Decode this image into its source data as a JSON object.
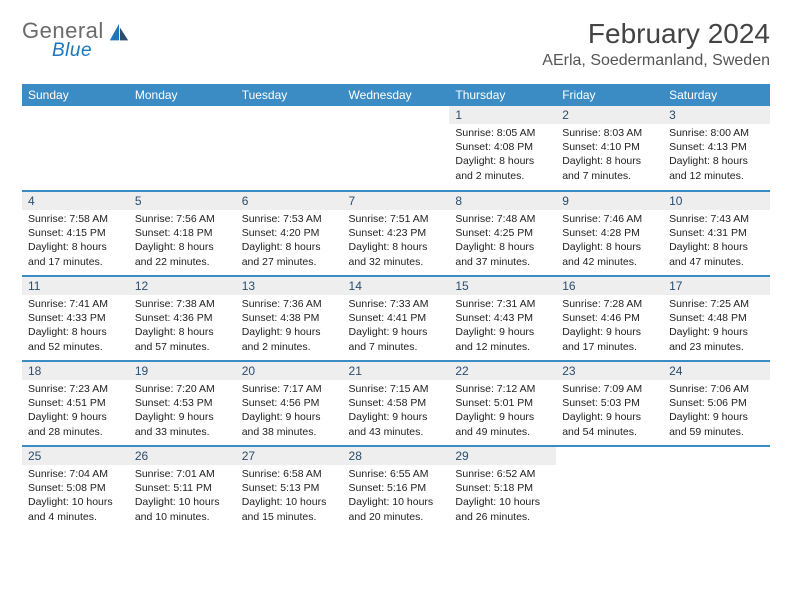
{
  "brand": {
    "name": "General",
    "sub": "Blue"
  },
  "title": "February 2024",
  "location": "AErla, Soedermanland, Sweden",
  "colors": {
    "header_blue": "#3b8bc4",
    "navy": "#2a4d6e",
    "lt_grey": "#eeeeee",
    "white": "#ffffff"
  },
  "dayHeaders": [
    "Sunday",
    "Monday",
    "Tuesday",
    "Wednesday",
    "Thursday",
    "Friday",
    "Saturday"
  ],
  "weeks": [
    [
      {
        "n": "",
        "lines": []
      },
      {
        "n": "",
        "lines": []
      },
      {
        "n": "",
        "lines": []
      },
      {
        "n": "",
        "lines": []
      },
      {
        "n": "1",
        "lines": [
          "Sunrise: 8:05 AM",
          "Sunset: 4:08 PM",
          "Daylight: 8 hours",
          "and 2 minutes."
        ]
      },
      {
        "n": "2",
        "lines": [
          "Sunrise: 8:03 AM",
          "Sunset: 4:10 PM",
          "Daylight: 8 hours",
          "and 7 minutes."
        ]
      },
      {
        "n": "3",
        "lines": [
          "Sunrise: 8:00 AM",
          "Sunset: 4:13 PM",
          "Daylight: 8 hours",
          "and 12 minutes."
        ]
      }
    ],
    [
      {
        "n": "4",
        "lines": [
          "Sunrise: 7:58 AM",
          "Sunset: 4:15 PM",
          "Daylight: 8 hours",
          "and 17 minutes."
        ]
      },
      {
        "n": "5",
        "lines": [
          "Sunrise: 7:56 AM",
          "Sunset: 4:18 PM",
          "Daylight: 8 hours",
          "and 22 minutes."
        ]
      },
      {
        "n": "6",
        "lines": [
          "Sunrise: 7:53 AM",
          "Sunset: 4:20 PM",
          "Daylight: 8 hours",
          "and 27 minutes."
        ]
      },
      {
        "n": "7",
        "lines": [
          "Sunrise: 7:51 AM",
          "Sunset: 4:23 PM",
          "Daylight: 8 hours",
          "and 32 minutes."
        ]
      },
      {
        "n": "8",
        "lines": [
          "Sunrise: 7:48 AM",
          "Sunset: 4:25 PM",
          "Daylight: 8 hours",
          "and 37 minutes."
        ]
      },
      {
        "n": "9",
        "lines": [
          "Sunrise: 7:46 AM",
          "Sunset: 4:28 PM",
          "Daylight: 8 hours",
          "and 42 minutes."
        ]
      },
      {
        "n": "10",
        "lines": [
          "Sunrise: 7:43 AM",
          "Sunset: 4:31 PM",
          "Daylight: 8 hours",
          "and 47 minutes."
        ]
      }
    ],
    [
      {
        "n": "11",
        "lines": [
          "Sunrise: 7:41 AM",
          "Sunset: 4:33 PM",
          "Daylight: 8 hours",
          "and 52 minutes."
        ]
      },
      {
        "n": "12",
        "lines": [
          "Sunrise: 7:38 AM",
          "Sunset: 4:36 PM",
          "Daylight: 8 hours",
          "and 57 minutes."
        ]
      },
      {
        "n": "13",
        "lines": [
          "Sunrise: 7:36 AM",
          "Sunset: 4:38 PM",
          "Daylight: 9 hours",
          "and 2 minutes."
        ]
      },
      {
        "n": "14",
        "lines": [
          "Sunrise: 7:33 AM",
          "Sunset: 4:41 PM",
          "Daylight: 9 hours",
          "and 7 minutes."
        ]
      },
      {
        "n": "15",
        "lines": [
          "Sunrise: 7:31 AM",
          "Sunset: 4:43 PM",
          "Daylight: 9 hours",
          "and 12 minutes."
        ]
      },
      {
        "n": "16",
        "lines": [
          "Sunrise: 7:28 AM",
          "Sunset: 4:46 PM",
          "Daylight: 9 hours",
          "and 17 minutes."
        ]
      },
      {
        "n": "17",
        "lines": [
          "Sunrise: 7:25 AM",
          "Sunset: 4:48 PM",
          "Daylight: 9 hours",
          "and 23 minutes."
        ]
      }
    ],
    [
      {
        "n": "18",
        "lines": [
          "Sunrise: 7:23 AM",
          "Sunset: 4:51 PM",
          "Daylight: 9 hours",
          "and 28 minutes."
        ]
      },
      {
        "n": "19",
        "lines": [
          "Sunrise: 7:20 AM",
          "Sunset: 4:53 PM",
          "Daylight: 9 hours",
          "and 33 minutes."
        ]
      },
      {
        "n": "20",
        "lines": [
          "Sunrise: 7:17 AM",
          "Sunset: 4:56 PM",
          "Daylight: 9 hours",
          "and 38 minutes."
        ]
      },
      {
        "n": "21",
        "lines": [
          "Sunrise: 7:15 AM",
          "Sunset: 4:58 PM",
          "Daylight: 9 hours",
          "and 43 minutes."
        ]
      },
      {
        "n": "22",
        "lines": [
          "Sunrise: 7:12 AM",
          "Sunset: 5:01 PM",
          "Daylight: 9 hours",
          "and 49 minutes."
        ]
      },
      {
        "n": "23",
        "lines": [
          "Sunrise: 7:09 AM",
          "Sunset: 5:03 PM",
          "Daylight: 9 hours",
          "and 54 minutes."
        ]
      },
      {
        "n": "24",
        "lines": [
          "Sunrise: 7:06 AM",
          "Sunset: 5:06 PM",
          "Daylight: 9 hours",
          "and 59 minutes."
        ]
      }
    ],
    [
      {
        "n": "25",
        "lines": [
          "Sunrise: 7:04 AM",
          "Sunset: 5:08 PM",
          "Daylight: 10 hours",
          "and 4 minutes."
        ]
      },
      {
        "n": "26",
        "lines": [
          "Sunrise: 7:01 AM",
          "Sunset: 5:11 PM",
          "Daylight: 10 hours",
          "and 10 minutes."
        ]
      },
      {
        "n": "27",
        "lines": [
          "Sunrise: 6:58 AM",
          "Sunset: 5:13 PM",
          "Daylight: 10 hours",
          "and 15 minutes."
        ]
      },
      {
        "n": "28",
        "lines": [
          "Sunrise: 6:55 AM",
          "Sunset: 5:16 PM",
          "Daylight: 10 hours",
          "and 20 minutes."
        ]
      },
      {
        "n": "29",
        "lines": [
          "Sunrise: 6:52 AM",
          "Sunset: 5:18 PM",
          "Daylight: 10 hours",
          "and 26 minutes."
        ]
      },
      {
        "n": "",
        "lines": []
      },
      {
        "n": "",
        "lines": []
      }
    ]
  ]
}
